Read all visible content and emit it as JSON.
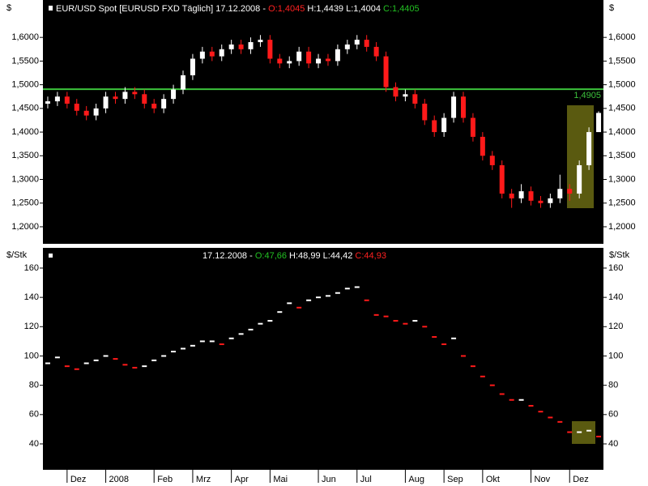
{
  "chart_data": [
    {
      "type": "candlestick",
      "title": "EUR/USD Spot [EURUSD FXD  Täglich] 17.12.2008 -",
      "header_values": [
        "O:1,4045",
        "H:1,4439",
        "L:1,4004",
        "C:1,4405"
      ],
      "y_label": "$",
      "categories": [
        null,
        null,
        "Dez",
        null,
        null,
        null,
        "2008",
        null,
        null,
        null,
        null,
        "Feb",
        null,
        null,
        null,
        "Mrz",
        null,
        null,
        null,
        "Apr",
        null,
        null,
        null,
        "Mai",
        null,
        null,
        null,
        null,
        "Jun",
        null,
        null,
        null,
        "Jul",
        null,
        null,
        null,
        null,
        "Aug",
        null,
        null,
        null,
        "Sep",
        null,
        null,
        null,
        "Okt",
        null,
        null,
        null,
        null,
        "Nov",
        null,
        null,
        null,
        "Dez",
        null,
        null,
        null
      ],
      "open": [
        1.46,
        1.465,
        1.475,
        1.46,
        1.445,
        1.435,
        1.45,
        1.475,
        1.47,
        1.485,
        1.48,
        1.46,
        1.45,
        1.47,
        1.49,
        1.52,
        1.555,
        1.57,
        1.56,
        1.575,
        1.585,
        1.575,
        1.59,
        1.595,
        1.555,
        1.545,
        1.55,
        1.57,
        1.545,
        1.555,
        1.55,
        1.575,
        1.585,
        1.595,
        1.58,
        1.56,
        1.495,
        1.475,
        1.48,
        1.46,
        1.425,
        1.4,
        1.43,
        1.475,
        1.43,
        1.39,
        1.35,
        1.33,
        1.27,
        1.26,
        1.275,
        1.255,
        1.25,
        1.26,
        1.28,
        1.27,
        1.33,
        1.4
      ],
      "high": [
        1.475,
        1.485,
        1.485,
        1.47,
        1.455,
        1.46,
        1.485,
        1.485,
        1.495,
        1.495,
        1.49,
        1.47,
        1.48,
        1.5,
        1.53,
        1.565,
        1.58,
        1.58,
        1.585,
        1.595,
        1.595,
        1.6,
        1.605,
        1.605,
        1.565,
        1.56,
        1.58,
        1.58,
        1.565,
        1.565,
        1.585,
        1.595,
        1.605,
        1.605,
        1.59,
        1.57,
        1.505,
        1.49,
        1.49,
        1.47,
        1.435,
        1.44,
        1.485,
        1.485,
        1.44,
        1.4,
        1.36,
        1.34,
        1.28,
        1.29,
        1.285,
        1.265,
        1.27,
        1.31,
        1.29,
        1.34,
        1.41,
        1.4439
      ],
      "low": [
        1.45,
        1.455,
        1.45,
        1.435,
        1.425,
        1.425,
        1.44,
        1.46,
        1.46,
        1.47,
        1.45,
        1.44,
        1.44,
        1.46,
        1.48,
        1.51,
        1.545,
        1.55,
        1.55,
        1.565,
        1.565,
        1.565,
        1.58,
        1.545,
        1.535,
        1.535,
        1.54,
        1.535,
        1.535,
        1.54,
        1.54,
        1.565,
        1.575,
        1.57,
        1.55,
        1.485,
        1.465,
        1.465,
        1.45,
        1.415,
        1.39,
        1.39,
        1.42,
        1.42,
        1.38,
        1.34,
        1.32,
        1.26,
        1.24,
        1.25,
        1.245,
        1.24,
        1.24,
        1.25,
        1.255,
        1.26,
        1.32,
        1.4004
      ],
      "close": [
        1.465,
        1.475,
        1.46,
        1.445,
        1.435,
        1.45,
        1.475,
        1.47,
        1.485,
        1.48,
        1.46,
        1.45,
        1.47,
        1.49,
        1.52,
        1.555,
        1.57,
        1.56,
        1.575,
        1.585,
        1.575,
        1.59,
        1.595,
        1.555,
        1.545,
        1.55,
        1.57,
        1.545,
        1.555,
        1.55,
        1.575,
        1.585,
        1.595,
        1.58,
        1.56,
        1.495,
        1.475,
        1.48,
        1.46,
        1.425,
        1.4,
        1.43,
        1.475,
        1.43,
        1.39,
        1.35,
        1.33,
        1.27,
        1.26,
        1.275,
        1.255,
        1.25,
        1.26,
        1.28,
        1.27,
        1.33,
        1.4,
        1.4405
      ],
      "up_color": "#ffffff",
      "down_color": "#ff1a1a",
      "ylim": [
        1.164,
        1.679
      ],
      "yticks": [
        {
          "value": 1.2,
          "label": "1,2000"
        },
        {
          "value": 1.25,
          "label": "1,2500"
        },
        {
          "value": 1.3,
          "label": "1,3000"
        },
        {
          "value": 1.35,
          "label": "1,3500"
        },
        {
          "value": 1.4,
          "label": "1,4000"
        },
        {
          "value": 1.45,
          "label": "1,4500"
        },
        {
          "value": 1.5,
          "label": "1,5000"
        },
        {
          "value": 1.55,
          "label": "1,5500"
        },
        {
          "value": 1.6,
          "label": "1,6000"
        }
      ],
      "level_line": {
        "value": 1.4905,
        "label": "1,4905",
        "color": "#3cc23c"
      }
    },
    {
      "type": "dash",
      "title": "17.12.2008 -",
      "header_values": [
        "O:47,66",
        "H:48,99",
        "L:44,42",
        "C:44,93"
      ],
      "y_label": "$/Stk",
      "values": [
        95,
        99,
        93,
        91,
        95,
        97,
        100,
        98,
        94,
        92,
        93,
        97,
        100,
        103,
        105,
        107,
        110,
        110,
        108,
        112,
        115,
        118,
        122,
        124,
        130,
        136,
        133,
        138,
        140,
        141,
        143,
        146,
        147,
        138,
        128,
        127,
        124,
        122,
        124,
        120,
        113,
        108,
        112,
        100,
        93,
        86,
        80,
        74,
        70,
        70,
        66,
        62,
        58,
        55,
        48,
        48,
        49,
        45
      ],
      "up_color": "#ffffff",
      "down_color": "#ff1a1a",
      "ylim": [
        22.3,
        173.8
      ],
      "yticks": [
        40,
        60,
        80,
        100,
        120,
        140,
        160
      ]
    }
  ]
}
